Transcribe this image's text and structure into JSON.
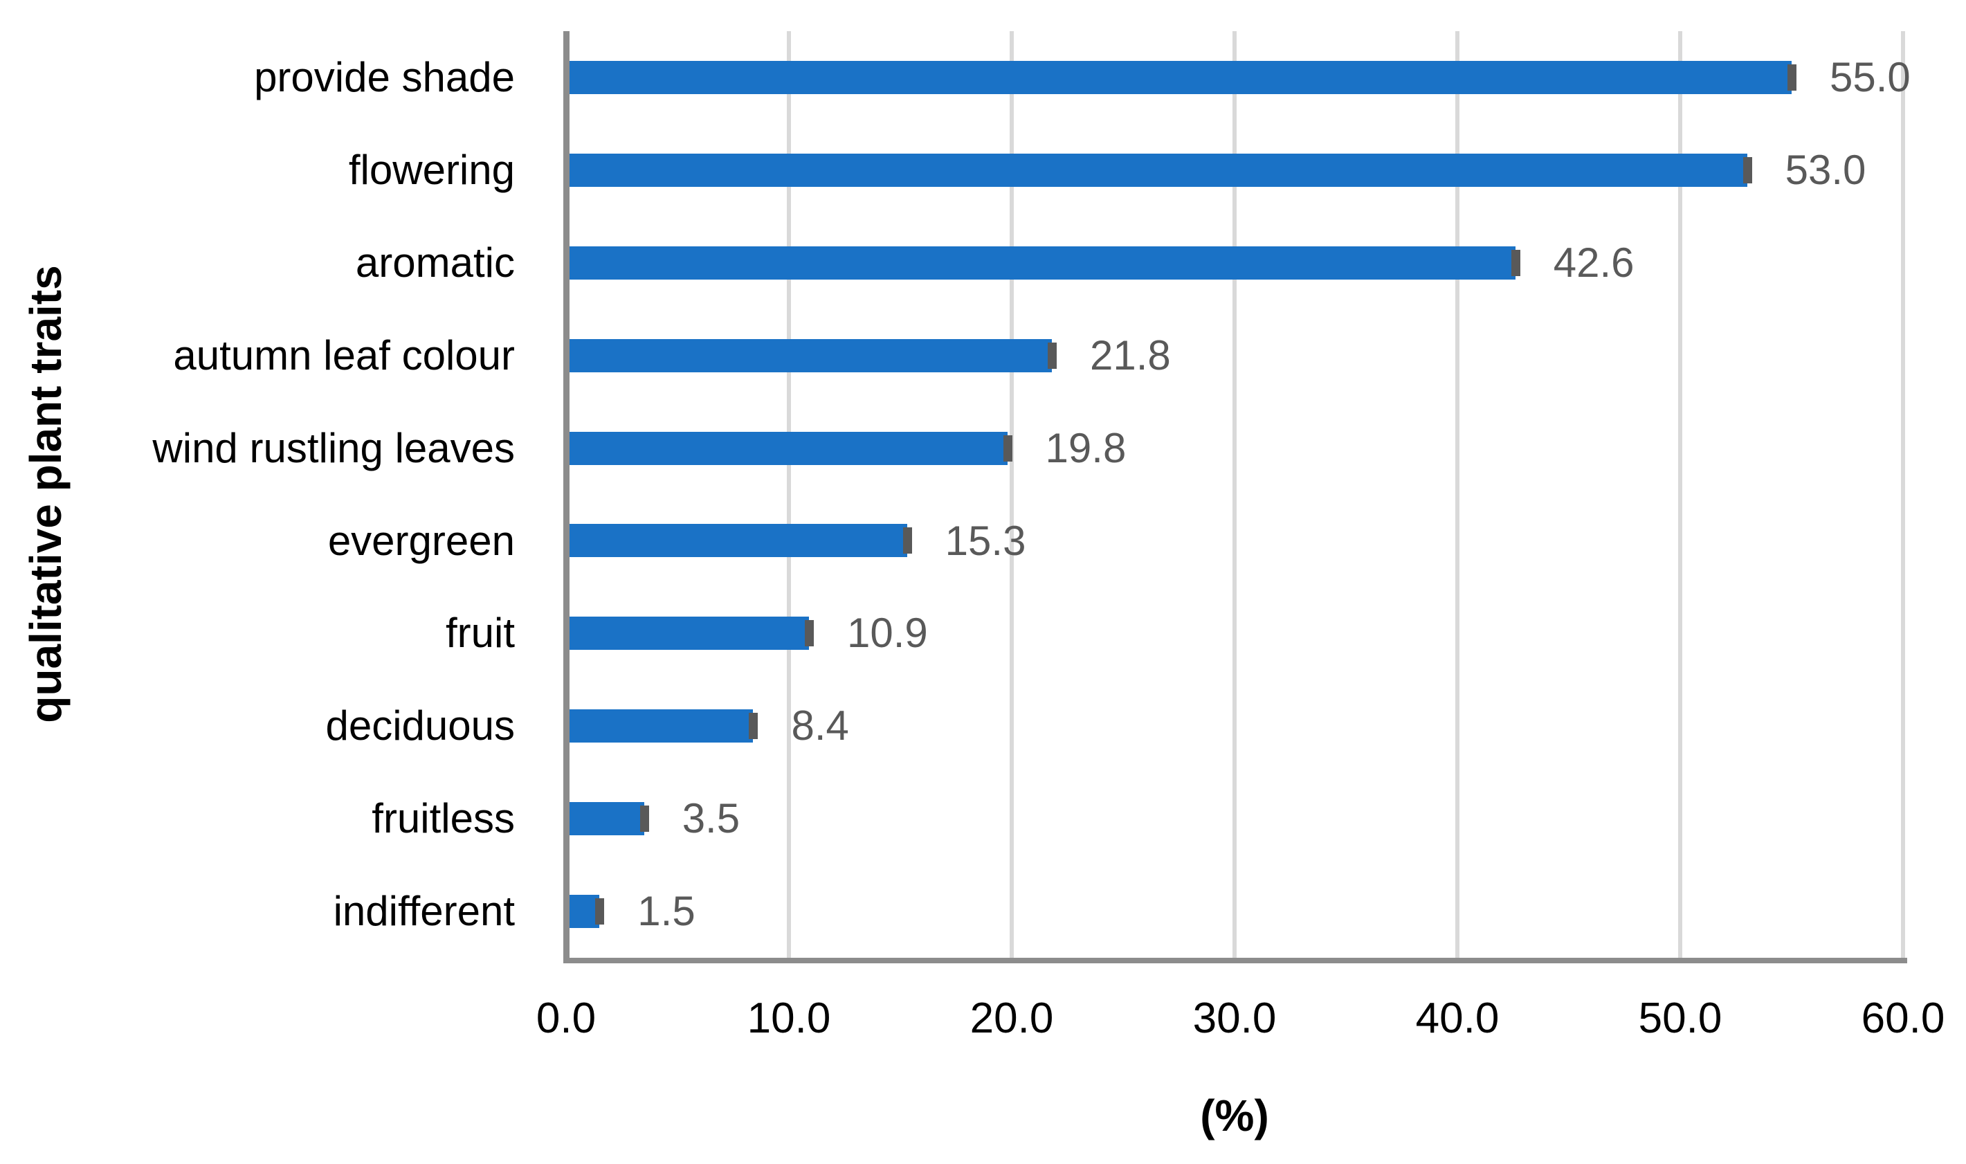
{
  "chart_data": {
    "type": "bar",
    "orientation": "horizontal",
    "title": "",
    "ylabel": "qualitative plant traits",
    "xlabel": "(%)",
    "categories": [
      "provide shade",
      "flowering",
      "aromatic",
      "autumn leaf colour",
      "wind rustling leaves",
      "evergreen",
      "fruit",
      "deciduous",
      "fruitless",
      "indifferent"
    ],
    "values": [
      55.0,
      53.0,
      42.6,
      21.8,
      19.8,
      15.3,
      10.9,
      8.4,
      3.5,
      1.5
    ],
    "value_labels": [
      "55.0",
      "53.0",
      "42.6",
      "21.8",
      "19.8",
      "15.3",
      "10.9",
      "8.4",
      "3.5",
      "1.5"
    ],
    "xlim": [
      0,
      60
    ],
    "x_ticks": [
      "0.0",
      "10.0",
      "20.0",
      "30.0",
      "40.0",
      "50.0",
      "60.0"
    ],
    "grid": true,
    "legend": false,
    "colors": {
      "bar": "#1A72C6",
      "bar_end_cap": "#595959",
      "value_label": "#595959",
      "axis_line": "#8C8C8C",
      "gridline": "#D9D9D9",
      "text": "#000000"
    }
  }
}
